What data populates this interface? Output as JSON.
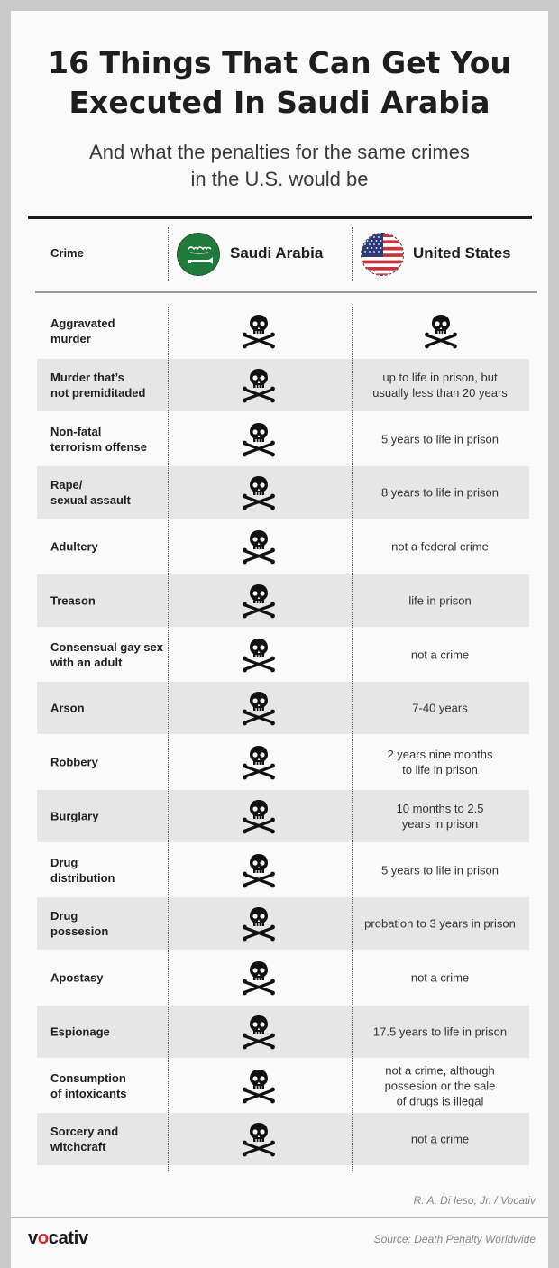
{
  "header": {
    "title_line1": "16 Things That Can Get You",
    "title_line2": "Executed In Saudi Arabia",
    "subtitle_line1": "And what the penalties for the same crimes",
    "subtitle_line2": "in the U.S. would be"
  },
  "columns": {
    "crime": "Crime",
    "saudi": "Saudi Arabia",
    "us": "United States"
  },
  "icons": {
    "penalty_icon": "skull-and-crossbones-icon",
    "saudi_flag": "saudi-flag-icon",
    "us_flag": "us-flag-icon"
  },
  "colors": {
    "saudi_green": "#1f7a3c",
    "us_red": "#c8323a",
    "us_blue": "#2b3a78",
    "brand_red": "#e0262b",
    "row_shade": "#e6e6e6"
  },
  "rows": [
    {
      "crime": "Aggravated\nmurder",
      "saudi": "death",
      "us": "death"
    },
    {
      "crime": "Murder that’s\nnot premiditaded",
      "saudi": "death",
      "us": "up to life in prison, but\nusually less than 20 years"
    },
    {
      "crime": "Non-fatal\nterrorism offense",
      "saudi": "death",
      "us": "5 years to life in prison"
    },
    {
      "crime": "Rape/\nsexual assault",
      "saudi": "death",
      "us": "8 years to life in prison"
    },
    {
      "crime": "Adultery",
      "saudi": "death",
      "us": "not a federal crime"
    },
    {
      "crime": "Treason",
      "saudi": "death",
      "us": "life in prison"
    },
    {
      "crime": "Consensual gay sex\nwith an adult",
      "saudi": "death",
      "us": "not a crime"
    },
    {
      "crime": "Arson",
      "saudi": "death",
      "us": "7-40 years"
    },
    {
      "crime": "Robbery",
      "saudi": "death",
      "us": "2 years nine months\nto life in prison"
    },
    {
      "crime": "Burglary",
      "saudi": "death",
      "us": "10 months to 2.5\nyears in prison"
    },
    {
      "crime": "Drug\ndistribution",
      "saudi": "death",
      "us": "5 years to life in prison"
    },
    {
      "crime": "Drug\npossesion",
      "saudi": "death",
      "us": "probation to 3 years in prison"
    },
    {
      "crime": "Apostasy",
      "saudi": "death",
      "us": "not a crime"
    },
    {
      "crime": "Espionage",
      "saudi": "death",
      "us": "17.5 years to life in prison"
    },
    {
      "crime": "Consumption\nof intoxicants",
      "saudi": "death",
      "us": "not a crime, although\npossesion or the sale\nof drugs is illegal"
    },
    {
      "crime": "Sorcery and\nwitchcraft",
      "saudi": "death",
      "us": "not a crime"
    }
  ],
  "footer": {
    "credit": "R. A. Di Ieso, Jr.  / Vocativ",
    "logo_pre": "v",
    "logo_accent": "o",
    "logo_post": "cativ",
    "source": "Source: Death Penalty Worldwide"
  }
}
